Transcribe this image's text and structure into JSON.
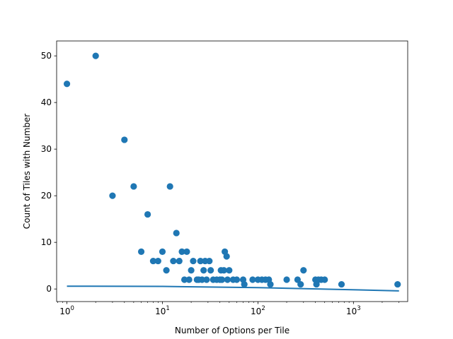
{
  "chart_data": {
    "type": "scatter",
    "title": "",
    "xlabel": "Number of Options per Tile",
    "ylabel": "Count of Tiles with Number",
    "xscale": "log",
    "xlim": [
      0.78,
      3700
    ],
    "ylim": [
      -2.7,
      53.2
    ],
    "x_ticks": [
      {
        "base": "10",
        "exp": "0",
        "value": 1
      },
      {
        "base": "10",
        "exp": "1",
        "value": 10
      },
      {
        "base": "10",
        "exp": "2",
        "value": 100
      },
      {
        "base": "10",
        "exp": "3",
        "value": 1000
      }
    ],
    "y_ticks": [
      0,
      10,
      20,
      30,
      40,
      50
    ],
    "grid": false,
    "marker_color": "#1f77b4",
    "series": [
      {
        "kind": "points",
        "points": [
          [
            1,
            44
          ],
          [
            2,
            50
          ],
          [
            3,
            20
          ],
          [
            4,
            32
          ],
          [
            5,
            22
          ],
          [
            6,
            8
          ],
          [
            7,
            16
          ],
          [
            8,
            6
          ],
          [
            9,
            6
          ],
          [
            10,
            8
          ],
          [
            11,
            4
          ],
          [
            12,
            22
          ],
          [
            13,
            6
          ],
          [
            14,
            12
          ],
          [
            15,
            6
          ],
          [
            16,
            8
          ],
          [
            17,
            2
          ],
          [
            18,
            8
          ],
          [
            19,
            2
          ],
          [
            20,
            4
          ],
          [
            21,
            6
          ],
          [
            23,
            2
          ],
          [
            24,
            2
          ],
          [
            25,
            6
          ],
          [
            26,
            2
          ],
          [
            27,
            4
          ],
          [
            28,
            6
          ],
          [
            29,
            2
          ],
          [
            31,
            6
          ],
          [
            32,
            4
          ],
          [
            34,
            2
          ],
          [
            37,
            2
          ],
          [
            40,
            2
          ],
          [
            41,
            4
          ],
          [
            42,
            2
          ],
          [
            44,
            4
          ],
          [
            45,
            8
          ],
          [
            47,
            7
          ],
          [
            48,
            2
          ],
          [
            50,
            4
          ],
          [
            55,
            2
          ],
          [
            60,
            2
          ],
          [
            70,
            2
          ],
          [
            72,
            1
          ],
          [
            88,
            2
          ],
          [
            100,
            2
          ],
          [
            110,
            2
          ],
          [
            120,
            2
          ],
          [
            130,
            2
          ],
          [
            135,
            1
          ],
          [
            200,
            2
          ],
          [
            260,
            2
          ],
          [
            280,
            1
          ],
          [
            300,
            4
          ],
          [
            400,
            2
          ],
          [
            410,
            1
          ],
          [
            430,
            2
          ],
          [
            460,
            2
          ],
          [
            500,
            2
          ],
          [
            750,
            1
          ],
          [
            2900,
            1
          ]
        ]
      },
      {
        "kind": "fit-line",
        "points": [
          [
            1,
            0.6
          ],
          [
            10,
            0.55
          ],
          [
            100,
            0.3
          ],
          [
            3000,
            -0.4
          ]
        ]
      }
    ]
  }
}
